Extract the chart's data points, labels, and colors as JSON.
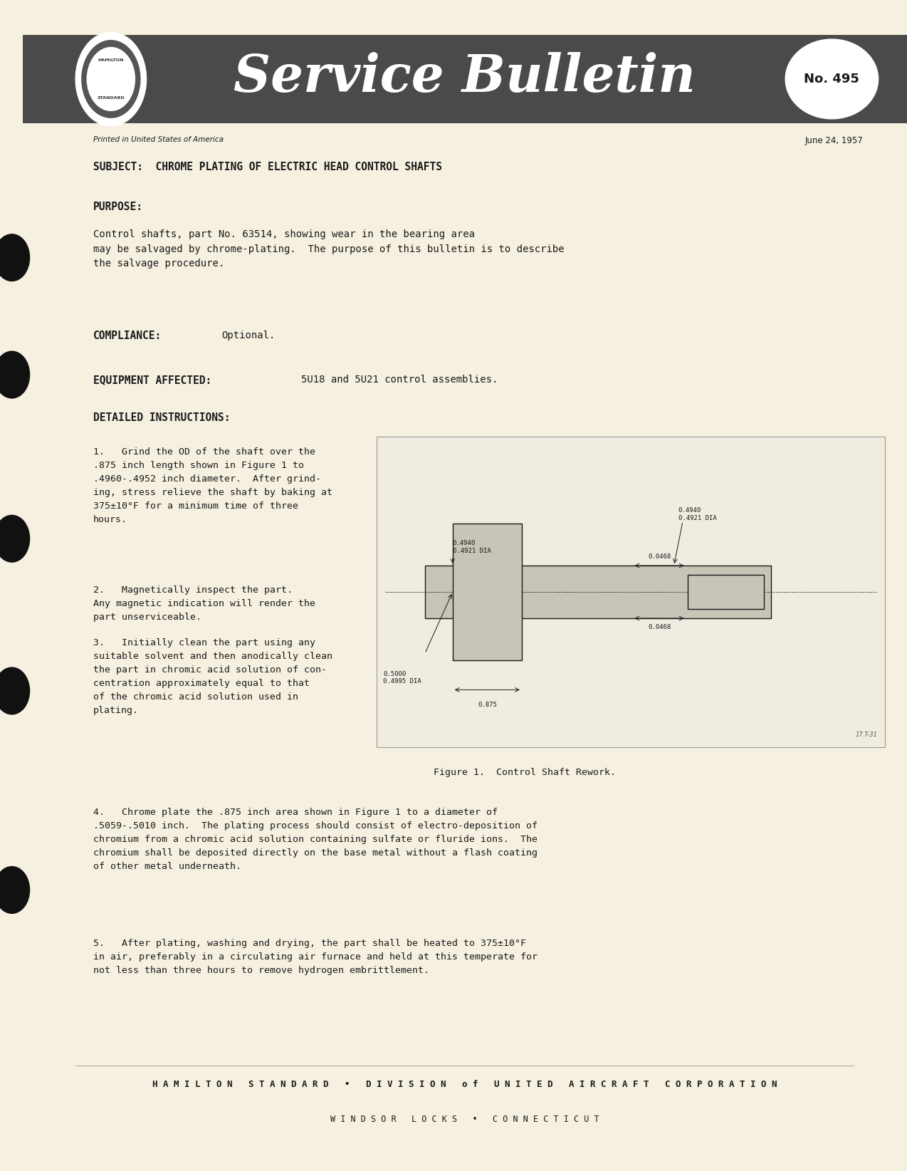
{
  "bg_color": "#f5f0e0",
  "header_bg": "#4a4a4a",
  "header_text_color": "#ffffff",
  "page_width": 12.74,
  "page_height": 16.44,
  "bulletin_no": "No. 495",
  "printed_in": "Printed in United States of America",
  "date": "June 24, 1957",
  "subject": "SUBJECT:  CHROME PLATING OF ELECTRIC HEAD CONTROL SHAFTS",
  "purpose_label": "PURPOSE:",
  "purpose_text": "Control shafts, part No. 63514, showing wear in the bearing area\nmay be salvaged by chrome-plating.  The purpose of this bulletin is to describe\nthe salvage procedure.",
  "compliance_label": "COMPLIANCE:",
  "compliance_text": "Optional.",
  "equipment_label": "EQUIPMENT AFFECTED:",
  "equipment_text": "5U18 and 5U21 control assemblies.",
  "detailed_label": "DETAILED INSTRUCTIONS:",
  "step1": "1.   Grind the OD of the shaft over the\n.875 inch length shown in Figure 1 to\n.4960-.4952 inch diameter.  After grind-\ning, stress relieve the shaft by baking at\n375±10°F for a minimum time of three\nhours.",
  "step2": "2.   Magnetically inspect the part.\nAny magnetic indication will render the\npart unserviceable.",
  "step3": "3.   Initially clean the part using any\nsuitable solvent and then anodically clean\nthe part in chromic acid solution of con-\ncentration approximately equal to that\nof the chromic acid solution used in\nplating.",
  "step4": "4.   Chrome plate the .875 inch area shown in Figure 1 to a diameter of\n.5059-.5010 inch.  The plating process should consist of electro-deposition of\nchromium from a chromic acid solution containing sulfate or fluride ions.  The\nchromium shall be deposited directly on the base metal without a flash coating\nof other metal underneath.",
  "step5": "5.   After plating, washing and drying, the part shall be heated to 375±10°F\nin air, preferably in a circulating air furnace and held at this temperate for\nnot less than three hours to remove hydrogen embrittlement.",
  "figure_caption": "Figure 1.  Control Shaft Rework.",
  "footer_line1": "H A M I L T O N   S T A N D A R D   •   D I V I S I O N   o f   U N I T E D   A I R C R A F T   C O R P O R A T I O N",
  "footer_line2": "W I N D S O R   L O C K S   •   C O N N E C T I C U T",
  "text_color": "#1a1a1a"
}
